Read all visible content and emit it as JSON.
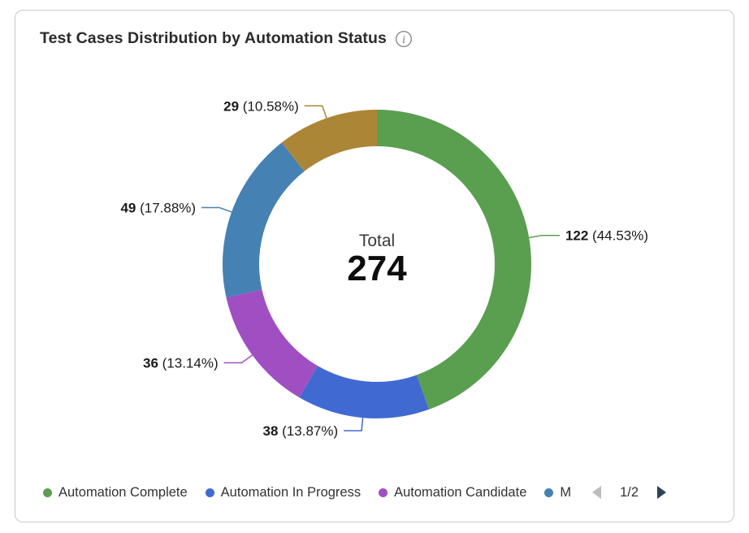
{
  "header": {
    "title": "Test Cases Distribution by Automation Status",
    "info_icon": "info"
  },
  "chart_data": {
    "type": "pie",
    "variant": "donut",
    "title": "Test Cases Distribution by Automation Status",
    "center_label": "Total",
    "total": 274,
    "direction": "clockwise",
    "start_angle_deg": 0,
    "legend_position": "bottom",
    "slices": [
      {
        "name": "Automation Complete",
        "value": 122,
        "percent": "44.53%",
        "color": "#5A9E50"
      },
      {
        "name": "Automation In Progress",
        "value": 38,
        "percent": "13.87%",
        "color": "#4169D2"
      },
      {
        "name": "Automation Candidate",
        "value": 36,
        "percent": "13.14%",
        "color": "#A04FC3"
      },
      {
        "name": "M",
        "value": 49,
        "percent": "17.88%",
        "color": "#4581B3"
      },
      {
        "name": "",
        "value": 29,
        "percent": "10.58%",
        "color": "#AB8637"
      }
    ]
  },
  "legend": {
    "items": [
      {
        "label": "Automation Complete",
        "color": "#5A9E50"
      },
      {
        "label": "Automation In Progress",
        "color": "#4169D2"
      },
      {
        "label": "Automation Candidate",
        "color": "#A04FC3"
      },
      {
        "label": "M",
        "color": "#4581B3"
      }
    ],
    "pagination": {
      "page": "1/2",
      "prev_enabled": false,
      "next_enabled": true
    }
  },
  "ui_colors": {
    "pager_prev": "#bdbdbd",
    "pager_next": "#2e4257",
    "card_border": "#c9c9c9"
  }
}
